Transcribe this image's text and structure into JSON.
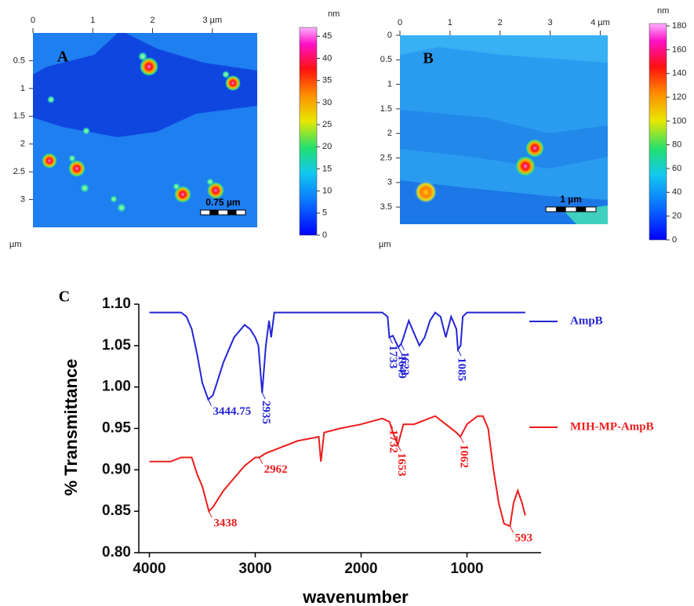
{
  "chart_data": [
    {
      "type": "heatmap",
      "panel_label": "A",
      "y_label": "µm",
      "xlim": [
        0,
        3.75
      ],
      "xticks": [
        0,
        1,
        2,
        {
          "value": 3,
          "label": "3 µm"
        }
      ],
      "ylim": [
        0,
        3.5
      ],
      "yticks": [
        0.5,
        1,
        1.5,
        2,
        2.5,
        3
      ],
      "colorbar": {
        "label": "nm",
        "lim": [
          0,
          47
        ],
        "ticks": [
          0,
          5,
          10,
          15,
          20,
          25,
          30,
          35,
          40,
          45
        ]
      },
      "scale_bar": {
        "label": "0.75 µm",
        "length": 0.75
      }
    },
    {
      "type": "heatmap",
      "panel_label": "B",
      "y_label": "µm",
      "xlim": [
        0,
        4.15
      ],
      "xticks": [
        0,
        1,
        2,
        3,
        {
          "value": 4,
          "label": "4 µm"
        }
      ],
      "ylim": [
        0,
        3.85
      ],
      "yticks": [
        0,
        0.5,
        1,
        1.5,
        2,
        2.5,
        3,
        3.5
      ],
      "colorbar": {
        "label": "nm",
        "lim": [
          0,
          182
        ],
        "ticks": [
          0,
          20,
          40,
          60,
          80,
          100,
          120,
          140,
          160,
          180
        ]
      },
      "scale_bar": {
        "label": "1 µm",
        "length": 1
      }
    },
    {
      "type": "line",
      "panel_label": "C",
      "x_label": "wavenumber",
      "y_label": "% Transmittance",
      "xlim": [
        4100,
        300
      ],
      "xticks": [
        4000,
        3000,
        2000,
        1000
      ],
      "ylim": [
        0.8,
        1.1
      ],
      "yticks": [
        {
          "value": 0.8,
          "label": "0.80"
        },
        {
          "value": 0.85,
          "label": "0.85"
        },
        {
          "value": 0.9,
          "label": "0.90"
        },
        {
          "value": 0.95,
          "label": "0.95"
        },
        {
          "value": 1.0,
          "label": "1.00"
        },
        {
          "value": 1.05,
          "label": "1.05"
        },
        {
          "value": 1.1,
          "label": "1.10"
        }
      ],
      "legend": "right",
      "series": [
        {
          "name": "AmpB",
          "color": "#2424d8",
          "x": [
            4000,
            3800,
            3700,
            3650,
            3600,
            3550,
            3500,
            3444.75,
            3400,
            3350,
            3300,
            3200,
            3100,
            3050,
            3000,
            2970,
            2935,
            2900,
            2870,
            2850,
            2820,
            2000,
            1800,
            1750,
            1733,
            1700,
            1649,
            1622,
            1600,
            1550,
            1500,
            1450,
            1400,
            1350,
            1300,
            1250,
            1200,
            1150,
            1100,
            1085,
            1060,
            1040,
            1000,
            900,
            450
          ],
          "values": [
            1.09,
            1.09,
            1.09,
            1.085,
            1.07,
            1.04,
            1.005,
            0.985,
            0.99,
            1.01,
            1.03,
            1.06,
            1.075,
            1.07,
            1.06,
            1.05,
            0.993,
            1.05,
            1.08,
            1.06,
            1.09,
            1.09,
            1.09,
            1.085,
            1.06,
            1.062,
            1.048,
            1.052,
            1.06,
            1.08,
            1.065,
            1.05,
            1.06,
            1.08,
            1.09,
            1.085,
            1.06,
            1.085,
            1.07,
            1.045,
            1.05,
            1.085,
            1.09,
            1.09,
            1.09
          ],
          "annotations": [
            {
              "text": "3444.75",
              "x": 3444.75,
              "y": 0.985,
              "vertical": false
            },
            {
              "text": "2935",
              "x": 2935,
              "y": 0.993,
              "vertical": true
            },
            {
              "text": "1733",
              "x": 1733,
              "y": 1.06,
              "vertical": true
            },
            {
              "text": "1649",
              "x": 1649,
              "y": 1.048,
              "vertical": true
            },
            {
              "text": "1622",
              "x": 1622,
              "y": 1.052,
              "vertical": true
            },
            {
              "text": "1085",
              "x": 1085,
              "y": 1.045,
              "vertical": true
            }
          ]
        },
        {
          "name": "MIH-MP-AmpB",
          "color": "#ee1c1c",
          "x": [
            4000,
            3800,
            3700,
            3600,
            3550,
            3500,
            3438,
            3400,
            3300,
            3200,
            3100,
            3000,
            2962,
            2900,
            2800,
            2600,
            2400,
            2380,
            2350,
            2200,
            2000,
            1800,
            1732,
            1700,
            1653,
            1600,
            1500,
            1400,
            1300,
            1200,
            1100,
            1062,
            1000,
            900,
            850,
            800,
            750,
            700,
            650,
            593,
            560,
            520,
            480,
            450
          ],
          "values": [
            0.91,
            0.91,
            0.915,
            0.915,
            0.895,
            0.88,
            0.85,
            0.855,
            0.875,
            0.89,
            0.905,
            0.915,
            0.915,
            0.92,
            0.925,
            0.935,
            0.94,
            0.91,
            0.945,
            0.95,
            0.955,
            0.962,
            0.958,
            0.945,
            0.93,
            0.955,
            0.955,
            0.96,
            0.965,
            0.955,
            0.945,
            0.94,
            0.955,
            0.965,
            0.965,
            0.95,
            0.9,
            0.86,
            0.835,
            0.832,
            0.86,
            0.875,
            0.86,
            0.845
          ],
          "annotations": [
            {
              "text": "3438",
              "x": 3438,
              "y": 0.85,
              "vertical": false
            },
            {
              "text": "2962",
              "x": 2962,
              "y": 0.915,
              "vertical": false
            },
            {
              "text": "1732",
              "x": 1732,
              "y": 0.958,
              "vertical": true
            },
            {
              "text": "1653",
              "x": 1653,
              "y": 0.93,
              "vertical": true
            },
            {
              "text": "1062",
              "x": 1062,
              "y": 0.94,
              "vertical": true
            },
            {
              "text": "593",
              "x": 593,
              "y": 0.832,
              "vertical": false
            }
          ]
        }
      ]
    }
  ]
}
